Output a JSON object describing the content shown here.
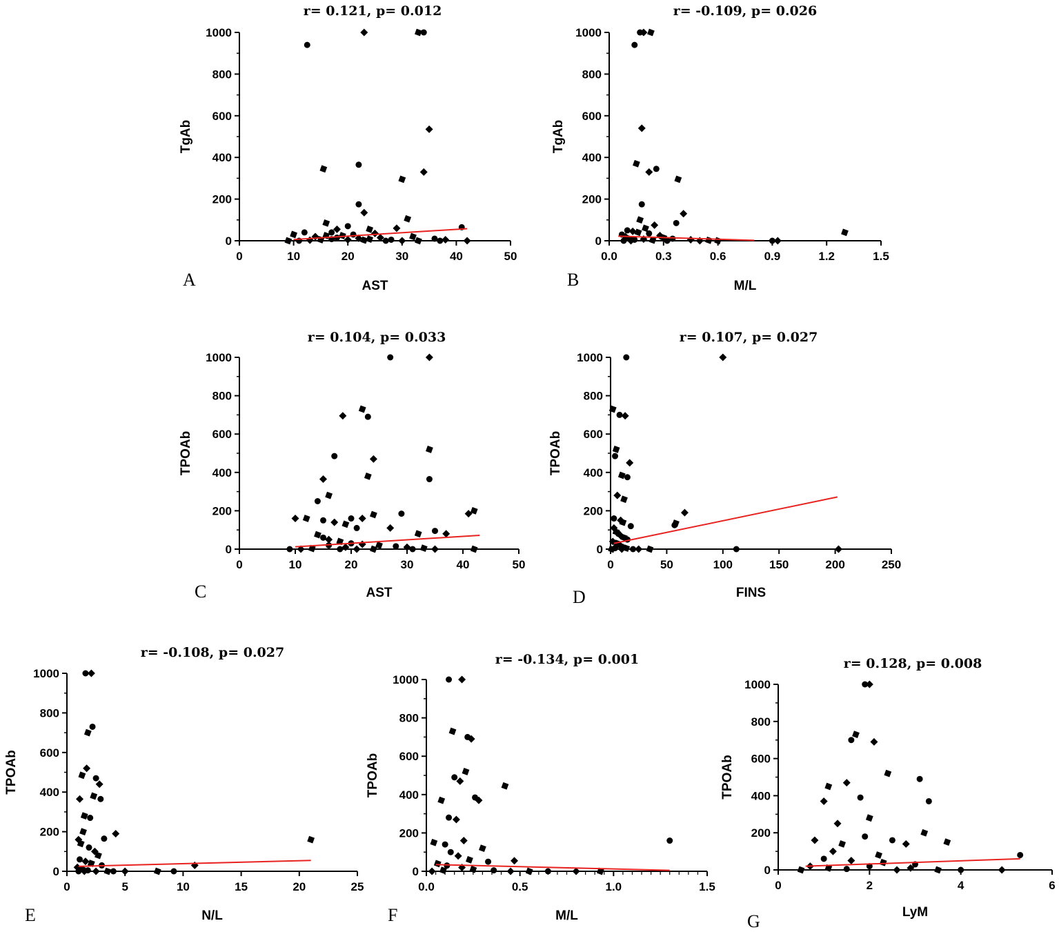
{
  "figure": {
    "description_panels": [
      "A",
      "B",
      "C",
      "D",
      "E",
      "F",
      "G"
    ]
  },
  "chart_data": [
    {
      "panel": "A",
      "type": "scatter",
      "title": "r= 0.121, p= 0.012",
      "xlabel": "AST",
      "ylabel": "TgAb",
      "xlim": [
        0,
        50
      ],
      "ylim": [
        0,
        1000
      ],
      "xticks": [
        "0",
        "10",
        "20",
        "30",
        "40",
        "50"
      ],
      "yticks": [
        "0",
        "200",
        "400",
        "600",
        "800",
        "1000"
      ],
      "fit_line": {
        "x": [
          10,
          42
        ],
        "y": [
          6,
          58
        ],
        "color": "#e8221f"
      },
      "points": [
        [
          12.5,
          940
        ],
        [
          23,
          1000
        ],
        [
          33,
          1000
        ],
        [
          34,
          1000
        ],
        [
          35,
          535
        ],
        [
          15.5,
          345
        ],
        [
          22,
          365
        ],
        [
          34,
          330
        ],
        [
          30,
          295
        ],
        [
          22,
          175
        ],
        [
          23,
          135
        ],
        [
          31,
          105
        ],
        [
          41,
          65
        ],
        [
          29,
          60
        ],
        [
          16,
          85
        ],
        [
          20,
          70
        ],
        [
          18,
          55
        ],
        [
          24,
          55
        ],
        [
          17,
          40
        ],
        [
          25,
          35
        ],
        [
          10,
          30
        ],
        [
          12,
          40
        ],
        [
          14,
          20
        ],
        [
          19,
          25
        ],
        [
          21,
          30
        ],
        [
          26,
          15
        ],
        [
          32,
          20
        ],
        [
          36,
          10
        ],
        [
          38,
          5
        ],
        [
          9,
          0
        ],
        [
          11,
          0
        ],
        [
          13,
          3
        ],
        [
          15,
          5
        ],
        [
          17,
          8
        ],
        [
          20,
          5
        ],
        [
          23,
          3
        ],
        [
          27,
          0
        ],
        [
          30,
          0
        ],
        [
          33,
          0
        ],
        [
          37,
          0
        ],
        [
          42,
          0
        ],
        [
          16,
          25
        ],
        [
          18,
          15
        ],
        [
          22,
          12
        ],
        [
          24,
          8
        ],
        [
          28,
          5
        ]
      ]
    },
    {
      "panel": "B",
      "type": "scatter",
      "title": "r= -0.109, p= 0.026",
      "xlabel": "M/L",
      "ylabel": "TgAb",
      "xlim": [
        0,
        1.5
      ],
      "ylim": [
        0,
        1000
      ],
      "xticks": [
        "0.0",
        "0.3",
        "0.6",
        "0.9",
        "1.2",
        "1.5"
      ],
      "yticks": [
        "0",
        "200",
        "400",
        "600",
        "800",
        "1000"
      ],
      "fit_line": {
        "x": [
          0.05,
          0.8
        ],
        "y": [
          22,
          2
        ],
        "color": "#e8221f"
      },
      "points": [
        [
          0.17,
          1000
        ],
        [
          0.19,
          1000
        ],
        [
          0.23,
          1000
        ],
        [
          0.14,
          940
        ],
        [
          0.18,
          540
        ],
        [
          0.15,
          370
        ],
        [
          0.26,
          345
        ],
        [
          0.22,
          330
        ],
        [
          0.38,
          295
        ],
        [
          0.18,
          175
        ],
        [
          0.41,
          130
        ],
        [
          0.17,
          100
        ],
        [
          0.37,
          85
        ],
        [
          0.25,
          75
        ],
        [
          0.2,
          60
        ],
        [
          0.1,
          50
        ],
        [
          0.13,
          45
        ],
        [
          0.16,
          40
        ],
        [
          0.22,
          35
        ],
        [
          0.28,
          25
        ],
        [
          0.3,
          15
        ],
        [
          0.35,
          10
        ],
        [
          0.45,
          5
        ],
        [
          0.6,
          0
        ],
        [
          0.9,
          0
        ],
        [
          0.93,
          0
        ],
        [
          1.3,
          40
        ],
        [
          0.07,
          30
        ],
        [
          0.09,
          20
        ],
        [
          0.11,
          10
        ],
        [
          0.14,
          5
        ],
        [
          0.19,
          8
        ],
        [
          0.24,
          3
        ],
        [
          0.32,
          0
        ],
        [
          0.5,
          0
        ],
        [
          0.55,
          2
        ],
        [
          0.08,
          0
        ],
        [
          0.12,
          0
        ]
      ]
    },
    {
      "panel": "C",
      "type": "scatter",
      "title": "r= 0.104, p= 0.033",
      "xlabel": "AST",
      "ylabel": "TPOAb",
      "xlim": [
        0,
        50
      ],
      "ylim": [
        0,
        1000
      ],
      "xticks": [
        "0",
        "10",
        "20",
        "30",
        "40",
        "50"
      ],
      "yticks": [
        "0",
        "200",
        "400",
        "600",
        "800",
        "1000"
      ],
      "fit_line": {
        "x": [
          10,
          43
        ],
        "y": [
          12,
          72
        ],
        "color": "#e8221f"
      },
      "points": [
        [
          27,
          1000
        ],
        [
          34,
          1000
        ],
        [
          22,
          730
        ],
        [
          23,
          690
        ],
        [
          18.5,
          695
        ],
        [
          34,
          520
        ],
        [
          17,
          485
        ],
        [
          24,
          470
        ],
        [
          23,
          380
        ],
        [
          34,
          365
        ],
        [
          15,
          365
        ],
        [
          16,
          280
        ],
        [
          14,
          250
        ],
        [
          10,
          160
        ],
        [
          12,
          160
        ],
        [
          20,
          160
        ],
        [
          22,
          160
        ],
        [
          24,
          180
        ],
        [
          29,
          185
        ],
        [
          41,
          185
        ],
        [
          42,
          200
        ],
        [
          15,
          150
        ],
        [
          17,
          140
        ],
        [
          19,
          130
        ],
        [
          21,
          110
        ],
        [
          27,
          110
        ],
        [
          32,
          80
        ],
        [
          35,
          95
        ],
        [
          37,
          80
        ],
        [
          14,
          75
        ],
        [
          15,
          60
        ],
        [
          16,
          50
        ],
        [
          18,
          40
        ],
        [
          20,
          30
        ],
        [
          22,
          25
        ],
        [
          25,
          20
        ],
        [
          28,
          15
        ],
        [
          30,
          10
        ],
        [
          33,
          5
        ],
        [
          9,
          0
        ],
        [
          11,
          0
        ],
        [
          13,
          3
        ],
        [
          18,
          0
        ],
        [
          21,
          0
        ],
        [
          24,
          0
        ],
        [
          31,
          0
        ],
        [
          35,
          0
        ],
        [
          42,
          0
        ],
        [
          16,
          20
        ],
        [
          19,
          10
        ]
      ]
    },
    {
      "panel": "D",
      "type": "scatter",
      "title": "r= 0.107, p= 0.027",
      "xlabel": "FINS",
      "ylabel": "TPOAb",
      "xlim": [
        0,
        250
      ],
      "ylim": [
        0,
        1000
      ],
      "xticks": [
        "0",
        "50",
        "100",
        "150",
        "200",
        "250"
      ],
      "yticks": [
        "0",
        "200",
        "400",
        "600",
        "800",
        "1000"
      ],
      "fit_line": {
        "x": [
          3,
          202
        ],
        "y": [
          30,
          272
        ],
        "color": "#e8221f"
      },
      "points": [
        [
          14,
          1000
        ],
        [
          100,
          1000
        ],
        [
          2,
          730
        ],
        [
          8,
          700
        ],
        [
          13,
          695
        ],
        [
          5,
          520
        ],
        [
          4,
          485
        ],
        [
          17,
          450
        ],
        [
          10,
          385
        ],
        [
          15,
          375
        ],
        [
          6,
          280
        ],
        [
          12,
          260
        ],
        [
          3,
          160
        ],
        [
          9,
          150
        ],
        [
          11,
          140
        ],
        [
          18,
          120
        ],
        [
          66,
          190
        ],
        [
          58,
          135
        ],
        [
          57,
          125
        ],
        [
          3,
          110
        ],
        [
          5,
          90
        ],
        [
          7,
          80
        ],
        [
          9,
          70
        ],
        [
          12,
          60
        ],
        [
          15,
          50
        ],
        [
          2,
          40
        ],
        [
          6,
          30
        ],
        [
          8,
          20
        ],
        [
          11,
          10
        ],
        [
          14,
          5
        ],
        [
          20,
          0
        ],
        [
          25,
          0
        ],
        [
          35,
          0
        ],
        [
          112,
          0
        ],
        [
          203,
          0
        ],
        [
          1,
          0
        ],
        [
          4,
          5
        ],
        [
          10,
          0
        ]
      ]
    },
    {
      "panel": "E",
      "type": "scatter",
      "title": "r= -0.108, p= 0.027",
      "xlabel": "N/L",
      "ylabel": "TPOAb",
      "xlim": [
        0,
        25
      ],
      "ylim": [
        0,
        1000
      ],
      "xticks": [
        "0",
        "5",
        "10",
        "15",
        "20",
        "25"
      ],
      "yticks": [
        "0",
        "200",
        "400",
        "600",
        "800",
        "1000"
      ],
      "fit_line": {
        "x": [
          1,
          21
        ],
        "y": [
          25,
          55
        ],
        "color": "#e8221f"
      },
      "points": [
        [
          1.6,
          1000
        ],
        [
          2.1,
          1000
        ],
        [
          1.8,
          700
        ],
        [
          2.2,
          730
        ],
        [
          1.7,
          520
        ],
        [
          1.3,
          485
        ],
        [
          2.5,
          470
        ],
        [
          2.8,
          440
        ],
        [
          2.3,
          380
        ],
        [
          2.9,
          365
        ],
        [
          1.1,
          365
        ],
        [
          1.5,
          280
        ],
        [
          2.0,
          270
        ],
        [
          1.0,
          160
        ],
        [
          1.4,
          200
        ],
        [
          3.2,
          165
        ],
        [
          4.2,
          190
        ],
        [
          1.2,
          140
        ],
        [
          1.9,
          120
        ],
        [
          2.4,
          100
        ],
        [
          2.7,
          80
        ],
        [
          1.1,
          60
        ],
        [
          1.6,
          50
        ],
        [
          2.1,
          40
        ],
        [
          3.0,
          30
        ],
        [
          0.9,
          20
        ],
        [
          1.3,
          10
        ],
        [
          1.8,
          5
        ],
        [
          2.5,
          0
        ],
        [
          3.5,
          0
        ],
        [
          4.0,
          0
        ],
        [
          5.0,
          0
        ],
        [
          7.8,
          0
        ],
        [
          9.2,
          0
        ],
        [
          11,
          30
        ],
        [
          21,
          160
        ],
        [
          1.0,
          0
        ],
        [
          1.5,
          0
        ]
      ]
    },
    {
      "panel": "F",
      "type": "scatter",
      "title": "r= -0.134, p= 0.001",
      "xlabel": "M/L",
      "ylabel": "TPOAb",
      "xlim": [
        0,
        1.5
      ],
      "ylim": [
        0,
        1000
      ],
      "xticks": [
        "0.0",
        "0.5",
        "1.0",
        "1.5"
      ],
      "yticks": [
        "0",
        "200",
        "400",
        "600",
        "800",
        "1000"
      ],
      "fit_line": {
        "x": [
          0.05,
          1.3
        ],
        "y": [
          35,
          5
        ],
        "color": "#e8221f"
      },
      "points": [
        [
          0.12,
          1000
        ],
        [
          0.19,
          1000
        ],
        [
          0.14,
          730
        ],
        [
          0.22,
          700
        ],
        [
          0.24,
          690
        ],
        [
          0.21,
          520
        ],
        [
          0.15,
          490
        ],
        [
          0.18,
          470
        ],
        [
          0.42,
          445
        ],
        [
          0.26,
          385
        ],
        [
          0.28,
          370
        ],
        [
          0.08,
          370
        ],
        [
          0.12,
          280
        ],
        [
          0.16,
          270
        ],
        [
          0.04,
          150
        ],
        [
          0.1,
          140
        ],
        [
          0.2,
          160
        ],
        [
          0.3,
          120
        ],
        [
          0.13,
          100
        ],
        [
          0.17,
          80
        ],
        [
          0.23,
          60
        ],
        [
          0.33,
          50
        ],
        [
          0.47,
          55
        ],
        [
          0.06,
          40
        ],
        [
          0.11,
          30
        ],
        [
          0.19,
          20
        ],
        [
          0.25,
          10
        ],
        [
          0.36,
          5
        ],
        [
          0.45,
          0
        ],
        [
          0.55,
          0
        ],
        [
          0.65,
          0
        ],
        [
          0.8,
          0
        ],
        [
          0.93,
          0
        ],
        [
          1.3,
          160
        ],
        [
          0.03,
          0
        ],
        [
          0.09,
          5
        ]
      ]
    },
    {
      "panel": "G",
      "type": "scatter",
      "title": "r= 0.128, p= 0.008",
      "xlabel": "LyM",
      "ylabel": "TPOAb",
      "xlim": [
        0,
        6
      ],
      "ylim": [
        0,
        1000
      ],
      "xticks": [
        "0",
        "2",
        "4",
        "6"
      ],
      "yticks": [
        "0",
        "200",
        "400",
        "600",
        "800",
        "1000"
      ],
      "fit_line": {
        "x": [
          0.6,
          5.3
        ],
        "y": [
          20,
          60
        ],
        "color": "#e8221f"
      },
      "points": [
        [
          1.9,
          1000
        ],
        [
          2.0,
          1000
        ],
        [
          1.7,
          730
        ],
        [
          1.6,
          700
        ],
        [
          2.1,
          690
        ],
        [
          2.4,
          520
        ],
        [
          3.1,
          490
        ],
        [
          1.5,
          470
        ],
        [
          1.1,
          450
        ],
        [
          3.3,
          370
        ],
        [
          1.0,
          370
        ],
        [
          2.0,
          280
        ],
        [
          1.8,
          390
        ],
        [
          1.3,
          250
        ],
        [
          3.2,
          200
        ],
        [
          2.5,
          160
        ],
        [
          0.8,
          160
        ],
        [
          1.4,
          140
        ],
        [
          1.9,
          180
        ],
        [
          2.8,
          140
        ],
        [
          3.7,
          150
        ],
        [
          5.3,
          80
        ],
        [
          1.2,
          100
        ],
        [
          2.2,
          80
        ],
        [
          1.0,
          60
        ],
        [
          1.6,
          50
        ],
        [
          2.3,
          40
        ],
        [
          3.0,
          30
        ],
        [
          0.7,
          20
        ],
        [
          1.1,
          10
        ],
        [
          1.5,
          5
        ],
        [
          2.6,
          0
        ],
        [
          3.5,
          0
        ],
        [
          4.0,
          0
        ],
        [
          4.9,
          0
        ],
        [
          0.5,
          0
        ],
        [
          2.0,
          20
        ],
        [
          2.9,
          10
        ]
      ]
    }
  ]
}
